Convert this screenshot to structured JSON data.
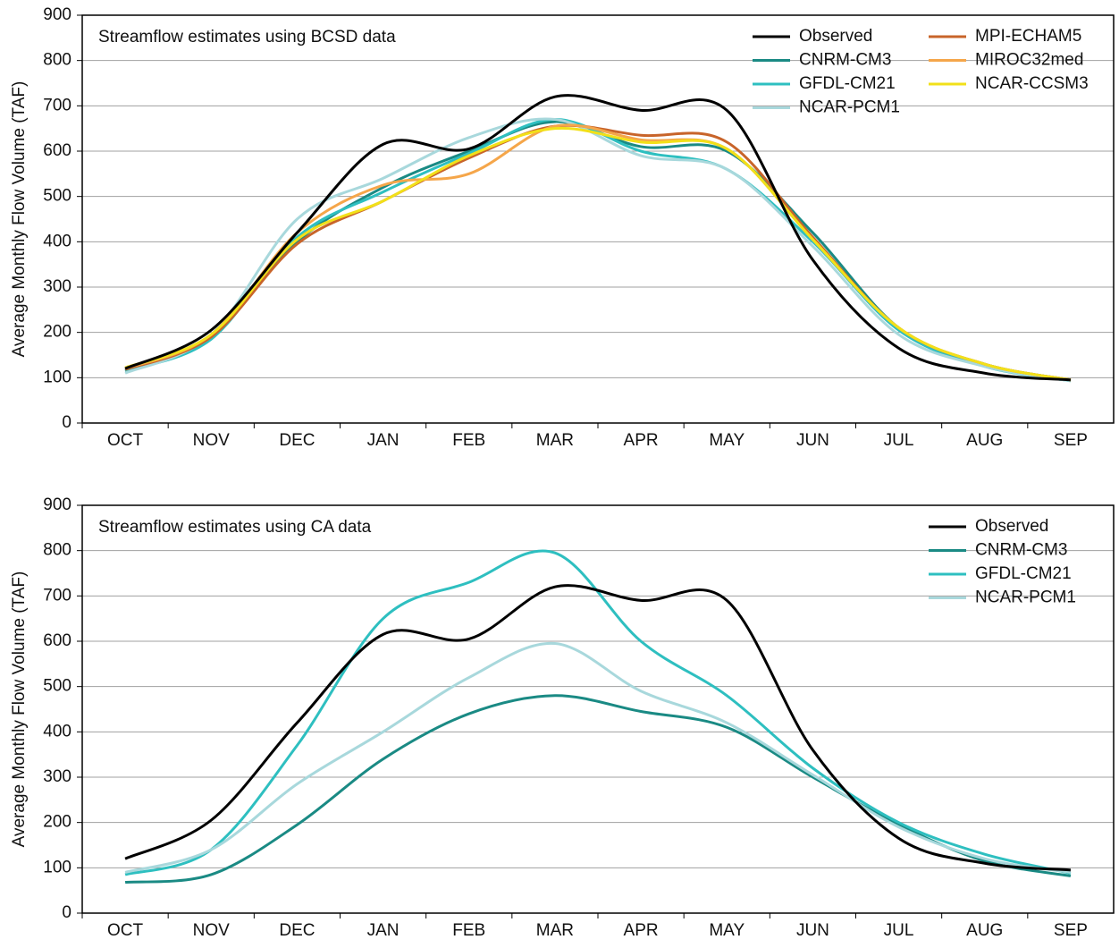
{
  "chart_data": [
    {
      "type": "line",
      "title": "Streamflow estimates using BCSD data",
      "y_label": "Average Monthly Flow Volume (TAF)",
      "categories": [
        "OCT",
        "NOV",
        "DEC",
        "JAN",
        "FEB",
        "MAR",
        "APR",
        "MAY",
        "JUN",
        "JUL",
        "AUG",
        "SEP"
      ],
      "ylim": [
        0,
        900
      ],
      "yticks": [
        0,
        100,
        200,
        300,
        400,
        500,
        600,
        700,
        800,
        900
      ],
      "grid": true,
      "legend": "upper right",
      "legend_columns": 2,
      "series": [
        {
          "name": "Observed",
          "color": "#000000",
          "values": [
            120,
            205,
            420,
            615,
            605,
            720,
            690,
            690,
            360,
            165,
            110,
            95
          ]
        },
        {
          "name": "CNRM-CM3",
          "color": "#1a8a84",
          "values": [
            115,
            190,
            400,
            520,
            600,
            665,
            610,
            600,
            420,
            210,
            130,
            95
          ]
        },
        {
          "name": "GFDL-CM21",
          "color": "#2ebfc0",
          "values": [
            115,
            185,
            410,
            510,
            595,
            670,
            600,
            560,
            400,
            205,
            125,
            93
          ]
        },
        {
          "name": "NCAR-PCM1",
          "color": "#a8d8dc",
          "values": [
            110,
            195,
            450,
            540,
            630,
            670,
            590,
            560,
            390,
            195,
            125,
            93
          ]
        },
        {
          "name": "MPI-ECHAM5",
          "color": "#c8642a",
          "values": [
            118,
            190,
            395,
            490,
            585,
            655,
            635,
            620,
            410,
            210,
            130,
            95
          ]
        },
        {
          "name": "MIROC32med",
          "color": "#f5a64a",
          "values": [
            120,
            195,
            420,
            525,
            550,
            655,
            625,
            605,
            405,
            210,
            130,
            95
          ]
        },
        {
          "name": "NCAR-CCSM3",
          "color": "#f2e019",
          "values": [
            122,
            195,
            405,
            490,
            590,
            650,
            620,
            605,
            405,
            210,
            130,
            95
          ]
        }
      ]
    },
    {
      "type": "line",
      "title": "Streamflow estimates using CA data",
      "y_label": "Average Monthly Flow Volume (TAF)",
      "categories": [
        "OCT",
        "NOV",
        "DEC",
        "JAN",
        "FEB",
        "MAR",
        "APR",
        "MAY",
        "JUN",
        "JUL",
        "AUG",
        "SEP"
      ],
      "ylim": [
        0,
        900
      ],
      "yticks": [
        0,
        100,
        200,
        300,
        400,
        500,
        600,
        700,
        800,
        900
      ],
      "grid": true,
      "legend": "upper right",
      "legend_columns": 1,
      "series": [
        {
          "name": "Observed",
          "color": "#000000",
          "values": [
            120,
            205,
            420,
            615,
            605,
            720,
            690,
            690,
            360,
            165,
            110,
            95
          ]
        },
        {
          "name": "CNRM-CM3",
          "color": "#1a8a84",
          "values": [
            68,
            85,
            195,
            340,
            440,
            480,
            445,
            410,
            300,
            195,
            115,
            82
          ]
        },
        {
          "name": "GFDL-CM21",
          "color": "#2ebfc0",
          "values": [
            85,
            140,
            370,
            650,
            730,
            795,
            600,
            480,
            320,
            200,
            130,
            88
          ]
        },
        {
          "name": "NCAR-PCM1",
          "color": "#a8d8dc",
          "values": [
            90,
            140,
            285,
            400,
            520,
            595,
            490,
            420,
            305,
            190,
            120,
            90
          ]
        }
      ]
    }
  ]
}
